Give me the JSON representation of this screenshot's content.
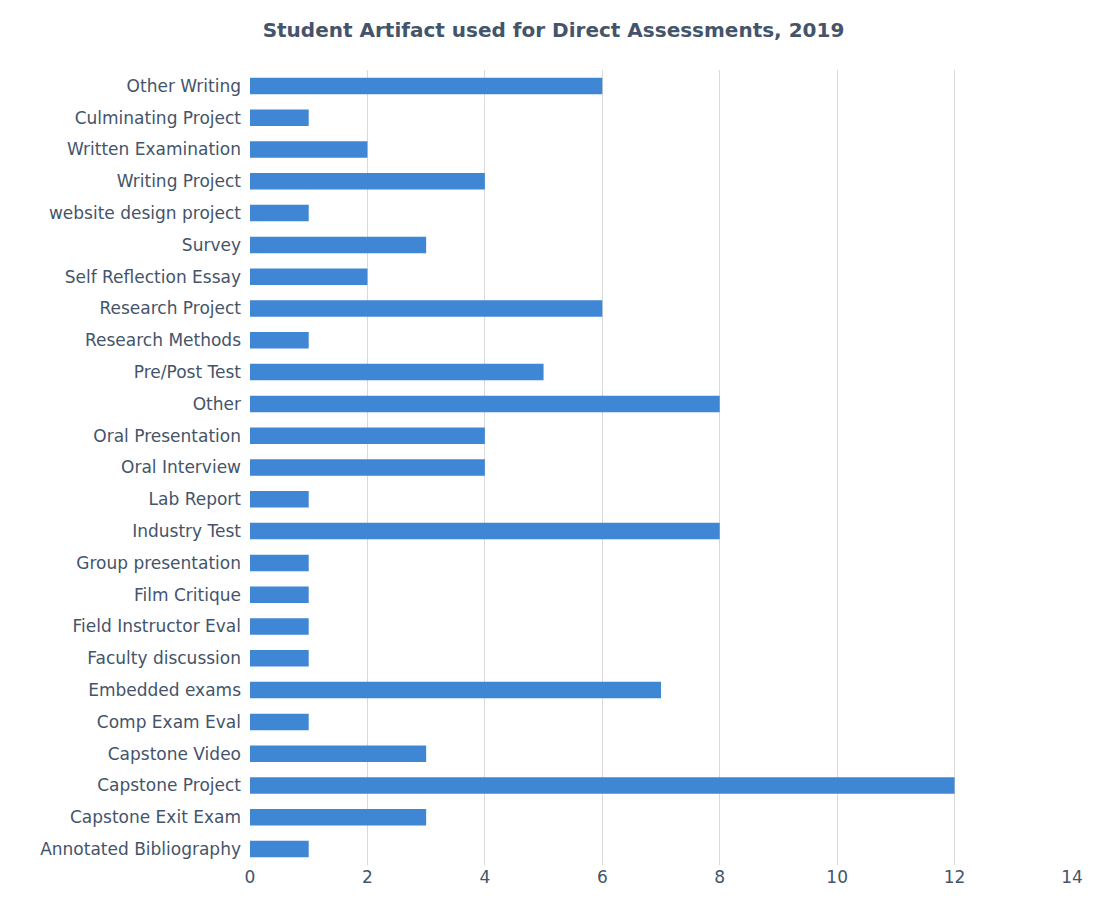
{
  "chart_data": {
    "type": "bar",
    "orientation": "horizontal",
    "title": "Student Artifact used for Direct Assessments, 2019",
    "categories": [
      "Annotated Bibliography",
      "Capstone Exit Exam",
      "Capstone Project",
      "Capstone Video",
      "Comp Exam Eval",
      "Embedded exams",
      "Faculty discussion",
      "Field Instructor Eval",
      "Film Critique",
      "Group presentation",
      "Industry Test",
      "Lab Report",
      "Oral Interview",
      "Oral Presentation",
      "Other",
      "Pre/Post Test",
      "Research Methods",
      "Research Project",
      "Self Reflection Essay",
      "Survey",
      "website design project",
      "Writing Project",
      "Written Examination",
      "Culminating Project",
      "Other Writing"
    ],
    "values": [
      1,
      3,
      12,
      3,
      1,
      7,
      1,
      1,
      1,
      1,
      8,
      1,
      4,
      4,
      8,
      5,
      1,
      6,
      2,
      3,
      1,
      4,
      2,
      1,
      6
    ],
    "color": "#3f86d4",
    "xlim": [
      0,
      14
    ],
    "xticks": [
      0,
      2,
      4,
      6,
      8,
      10,
      12,
      14
    ],
    "grid": true
  }
}
